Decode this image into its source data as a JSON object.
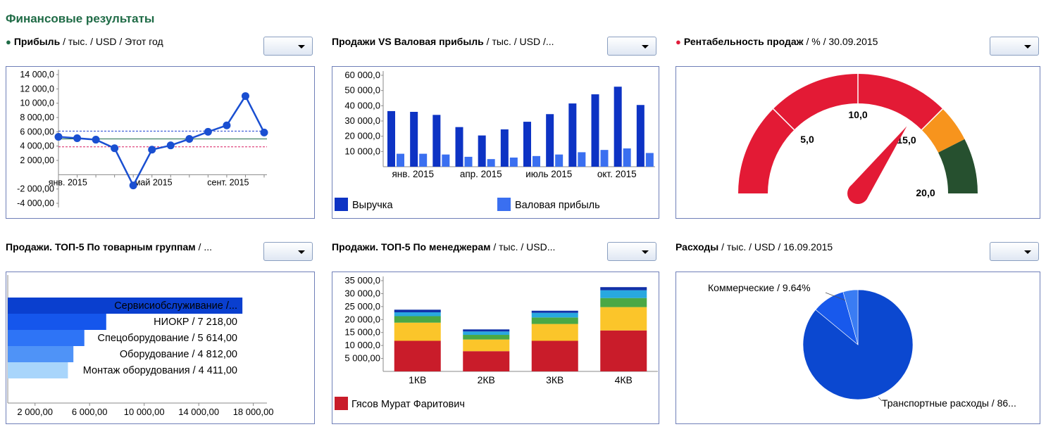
{
  "page_title": "Финансовые результаты",
  "widgets": [
    {
      "id": "profit",
      "title_bold": "Прибыль",
      "title_rest": " / тыс. / USD / Этот год",
      "dot_color": "#1f6b46"
    },
    {
      "id": "sales_vs_gross",
      "title_bold": "Продажи VS Валовая прибыль",
      "title_rest": " / тыс. / USD /...",
      "dot_color": ""
    },
    {
      "id": "rentability",
      "title_bold": "Рентабельность продаж",
      "title_rest": " / % / 30.09.2015",
      "dot_color": "#e01c3a"
    },
    {
      "id": "top5_groups",
      "title_bold": "Продажи. ТОП-5 По товарным группам",
      "title_rest": " / ...",
      "dot_color": ""
    },
    {
      "id": "top5_managers",
      "title_bold": "Продажи. ТОП-5 По менеджерам",
      "title_rest": " / тыс. / USD...",
      "dot_color": ""
    },
    {
      "id": "expenses",
      "title_bold": "Расходы",
      "title_rest": " / тыс. / USD / 16.09.2015",
      "dot_color": ""
    }
  ],
  "chart_data": [
    {
      "id": "profit",
      "type": "line",
      "y_ticks": [
        "14 000,0",
        "12 000,0",
        "10 000,0",
        "8 000,00",
        "6 000,00",
        "4 000,00",
        "2 000,00",
        "-2 000,00",
        "-4 000,00"
      ],
      "y_tick_values": [
        14000,
        12000,
        10000,
        8000,
        6000,
        4000,
        2000,
        -2000,
        -4000
      ],
      "ylim": [
        -4000,
        14500
      ],
      "x_labels": [
        {
          "text": "янв. 2015",
          "index": 0.5
        },
        {
          "text": "май 2015",
          "index": 5
        },
        {
          "text": "сент. 2015",
          "index": 9
        }
      ],
      "values": [
        5300,
        5100,
        4900,
        3700,
        -1500,
        3500,
        4100,
        5000,
        6000,
        6900,
        11000,
        5900
      ],
      "ref_lines": [
        {
          "value": 6100,
          "color": "#1a3fd0"
        },
        {
          "value": 5000,
          "color": "#1f6b46"
        },
        {
          "value": 3900,
          "color": "#d81b60"
        }
      ],
      "line_color": "#1a4fd1"
    },
    {
      "id": "sales_vs_gross",
      "type": "bar",
      "y_ticks": [
        "60 000,0",
        "50 000,0",
        "40 000,0",
        "30 000,0",
        "20 000,0",
        "10 000,0"
      ],
      "y_tick_values": [
        60000,
        50000,
        40000,
        30000,
        20000,
        10000
      ],
      "ylim": [
        0,
        60000
      ],
      "x_labels": [
        {
          "text": "янв. 2015",
          "index": 1
        },
        {
          "text": "апр. 2015",
          "index": 4
        },
        {
          "text": "июль 2015",
          "index": 7
        },
        {
          "text": "окт. 2015",
          "index": 10
        }
      ],
      "series": [
        {
          "name": "Выручка",
          "color": "#0d33c4",
          "values": [
            36500,
            36000,
            34000,
            26000,
            20500,
            24500,
            29500,
            34500,
            41500,
            47500,
            52500,
            40500
          ]
        },
        {
          "name": "Валовая прибыль",
          "color": "#3a6ff0",
          "values": [
            8500,
            8500,
            8000,
            6500,
            5000,
            6000,
            7000,
            8000,
            9500,
            11000,
            12000,
            9000
          ]
        }
      ]
    },
    {
      "id": "rentability",
      "type": "gauge",
      "min": 0,
      "max": 20,
      "tick_labels": [
        "5,0",
        "10,0",
        "15,0",
        "20,0"
      ],
      "bands": [
        {
          "from": 0,
          "to": 15,
          "color": "#e31a35"
        },
        {
          "from": 15,
          "to": 17,
          "color": "#f7941d"
        },
        {
          "from": 17,
          "to": 20,
          "color": "#26502f"
        }
      ],
      "value": 14.0,
      "needle_color": "#e31a35"
    },
    {
      "id": "top5_groups",
      "type": "bar",
      "orientation": "horizontal",
      "x_ticks": [
        "2 000,00",
        "6 000,00",
        "10 000,00",
        "14 000,00",
        "18 000,00"
      ],
      "xlim": [
        0,
        19000
      ],
      "bars": [
        {
          "label": "Сервисиобслуживание /...",
          "value": 17200,
          "color": "#0a3fcf"
        },
        {
          "label": "НИОКР / 7 218,00",
          "value": 7218,
          "color": "#1556ec"
        },
        {
          "label": "Спецоборудование / 5 614,00",
          "value": 5614,
          "color": "#2e74f6"
        },
        {
          "label": "Оборудование / 4 812,00",
          "value": 4812,
          "color": "#4f93f7"
        },
        {
          "label": "Монтаж оборудования / 4 411,00",
          "value": 4411,
          "color": "#a8d5fb"
        }
      ]
    },
    {
      "id": "top5_managers",
      "type": "bar",
      "stacked": true,
      "y_ticks": [
        "35 000,0",
        "30 000,0",
        "25 000,0",
        "20 000,0",
        "15 000,0",
        "10 000,0",
        "5 000,00"
      ],
      "y_tick_values": [
        35000,
        30000,
        25000,
        20000,
        15000,
        10000,
        5000
      ],
      "ylim": [
        0,
        35000
      ],
      "categories": [
        "1КВ",
        "2КВ",
        "3КВ",
        "4КВ"
      ],
      "legend": "Гясов Мурат Фаритович",
      "series": [
        {
          "color": "#c91c2a",
          "values": [
            11800,
            7800,
            11800,
            15800
          ]
        },
        {
          "color": "#fbc52a",
          "values": [
            7000,
            4500,
            6500,
            9000
          ]
        },
        {
          "color": "#4aa845",
          "values": [
            2500,
            1800,
            2500,
            3500
          ]
        },
        {
          "color": "#28a8e0",
          "values": [
            1500,
            1300,
            1800,
            3000
          ]
        },
        {
          "color": "#1030a8",
          "values": [
            1000,
            800,
            800,
            1200
          ]
        }
      ]
    },
    {
      "id": "expenses",
      "type": "pie",
      "slices": [
        {
          "label": "Транспортные расходы / 86...",
          "percent": 86.0,
          "color": "#0b48d0"
        },
        {
          "label": "Коммерческие / 9.64%",
          "percent": 9.64,
          "color": "#1859ec"
        },
        {
          "label": "",
          "percent": 4.36,
          "color": "#3a7cf3"
        }
      ]
    }
  ]
}
